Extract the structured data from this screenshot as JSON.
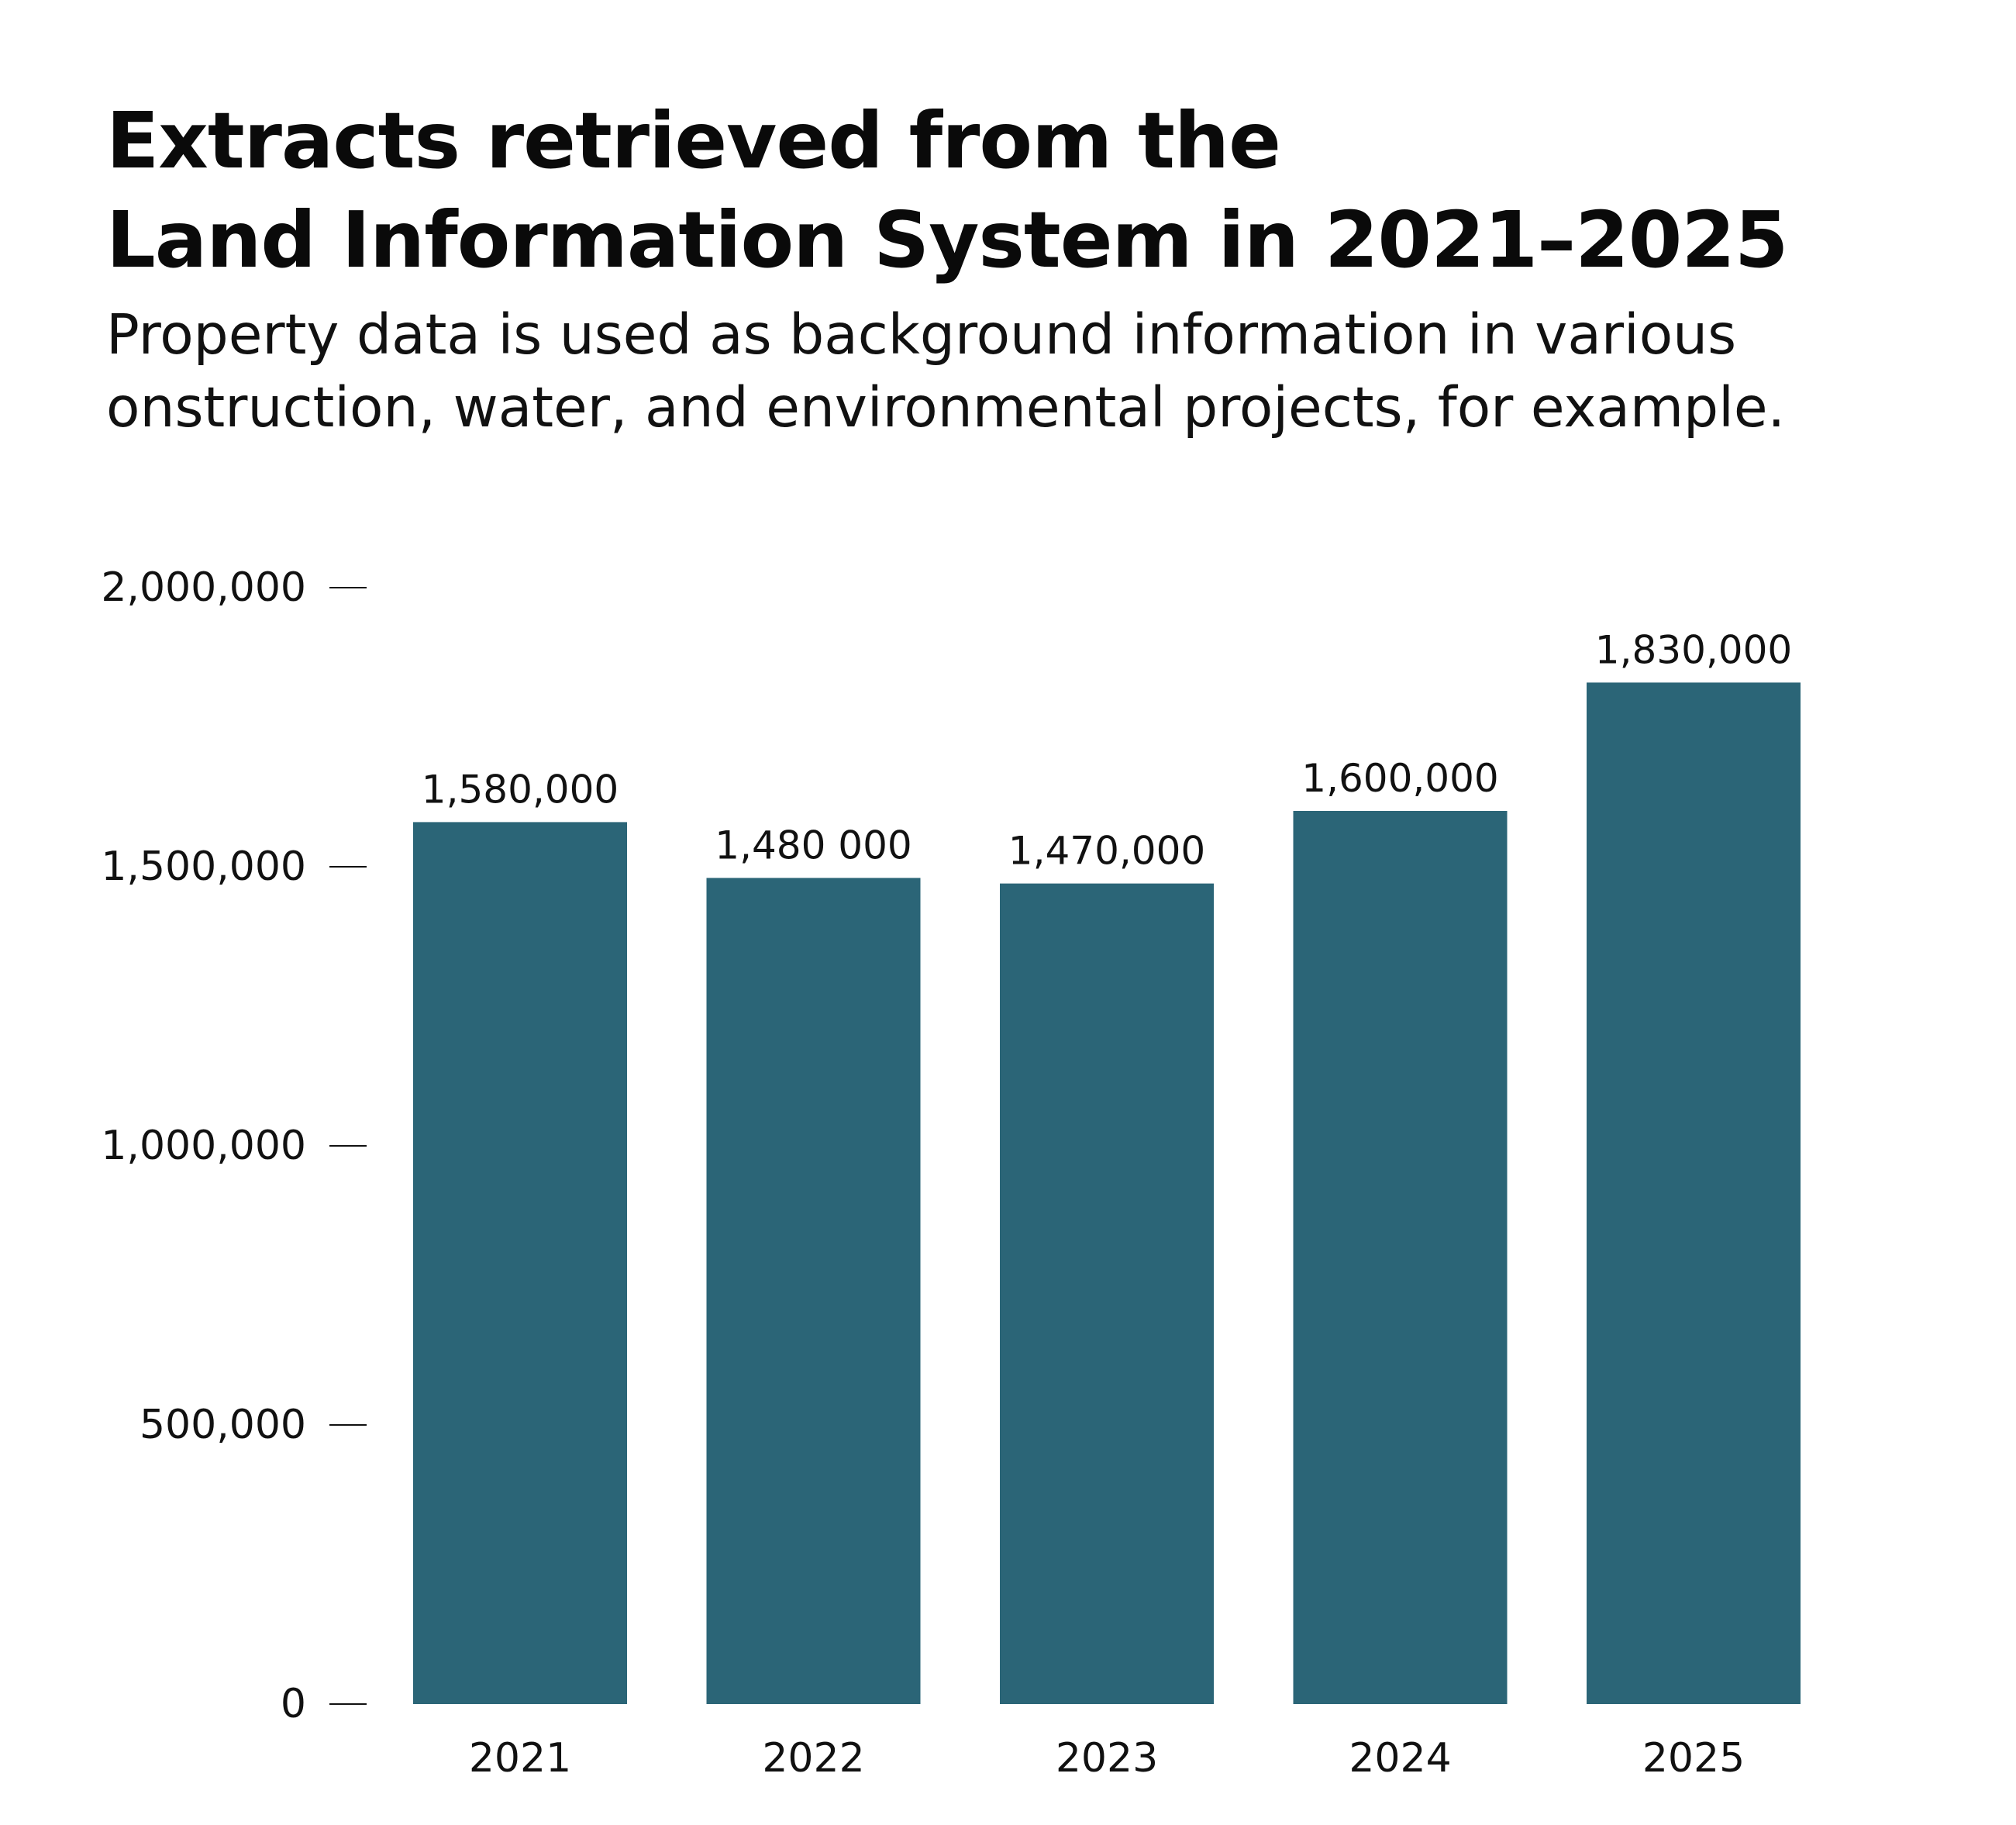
{
  "title_lines": [
    "Extracts retrieved from the",
    "Land Information System in 2021–2025"
  ],
  "subtitle_lines": [
    "Property data is used as background information in various",
    "onstruction, water, and environmental projects, for example."
  ],
  "colors": {
    "bar": "#2b6577",
    "text": "#111111",
    "tick": "#111111"
  },
  "chart_data": {
    "type": "bar",
    "title": "Extracts retrieved from the Land Information System in 2021–2025",
    "subtitle": "Property data is used as background information in various onstruction, water, and environmental projects, for example.",
    "xlabel": "",
    "ylabel": "",
    "ylim": [
      0,
      2000000
    ],
    "yticks": [
      0,
      500000,
      1000000,
      1500000,
      2000000
    ],
    "ytick_labels": [
      "0",
      "500,000",
      "1,000,000",
      "1,500,000",
      "2,000,000"
    ],
    "categories": [
      "2021",
      "2022",
      "2023",
      "2024",
      "2025"
    ],
    "values": [
      1580000,
      1480000,
      1470000,
      1600000,
      1830000
    ],
    "data_labels": [
      "1,580,000",
      "1,480 000",
      "1,470,000",
      "1,600,000",
      "1,830,000"
    ],
    "grid": false,
    "legend": "none"
  }
}
